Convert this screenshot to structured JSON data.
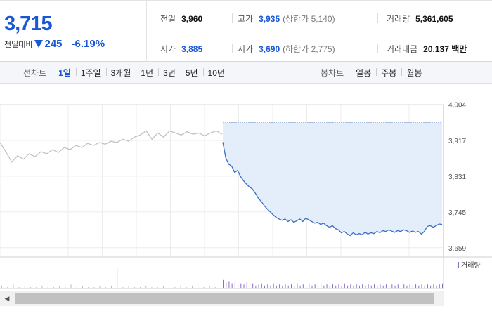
{
  "summary": {
    "current_price": "3,715",
    "change_label": "전일대비",
    "change_value": "245",
    "change_pct": "-6.19%",
    "prev_close": {
      "label": "전일",
      "value": "3,960"
    },
    "open": {
      "label": "시가",
      "value": "3,885"
    },
    "high": {
      "label": "고가",
      "value": "3,935",
      "limit_text": "(상한가 5,140)"
    },
    "low": {
      "label": "저가",
      "value": "3,690",
      "limit_text": "(하한가 2,775)"
    },
    "volume": {
      "label": "거래량",
      "value": "5,361,605"
    },
    "amount": {
      "label": "거래대금",
      "value": "20,137 백만"
    }
  },
  "toolbar": {
    "line_title": "선차트",
    "periods": [
      "1일",
      "1주일",
      "3개월",
      "1년",
      "3년",
      "5년",
      "10년"
    ],
    "active_period": "1일",
    "candle_title": "봉차트",
    "candles": [
      "일봉",
      "주봉",
      "월봉"
    ]
  },
  "chart_data": {
    "type": "line",
    "title": "",
    "xlabel": "",
    "ylabel": "",
    "ylim": [
      3640,
      4015
    ],
    "y_ticks": [
      "4,004",
      "3,917",
      "3,831",
      "3,745",
      "3,659"
    ],
    "y_tick_values": [
      4004,
      3917,
      3831,
      3745,
      3659
    ],
    "volume_legend": "거래량",
    "series": [
      {
        "role": "previous-day",
        "color": "#bdbdbd",
        "values": [
          3912,
          3890,
          3865,
          3880,
          3872,
          3885,
          3878,
          3890,
          3885,
          3895,
          3888,
          3900,
          3895,
          3905,
          3900,
          3910,
          3905,
          3912,
          3908,
          3915,
          3912,
          3920,
          3915,
          3925,
          3930,
          3940,
          3920,
          3935,
          3925,
          3940,
          3935,
          3930,
          3938,
          3932,
          3935,
          3928,
          3935,
          3940,
          3932
        ]
      },
      {
        "role": "today",
        "color": "#3a6fc4",
        "fill": "#e4edfa",
        "open_value": 3960,
        "values": [
          3913,
          3875,
          3860,
          3855,
          3840,
          3845,
          3830,
          3820,
          3812,
          3805,
          3800,
          3790,
          3778,
          3770,
          3760,
          3752,
          3745,
          3738,
          3732,
          3728,
          3725,
          3728,
          3722,
          3726,
          3720,
          3724,
          3728,
          3722,
          3730,
          3726,
          3722,
          3718,
          3720,
          3715,
          3718,
          3712,
          3708,
          3712,
          3705,
          3702,
          3695,
          3698,
          3692,
          3688,
          3695,
          3690,
          3693,
          3690,
          3696,
          3692,
          3695,
          3693,
          3698,
          3695,
          3700,
          3698,
          3702,
          3699,
          3696,
          3700,
          3698,
          3702,
          3700,
          3696,
          3699,
          3696,
          3698,
          3692,
          3698,
          3710,
          3712,
          3708,
          3712,
          3716,
          3715
        ]
      }
    ],
    "volume": {
      "prev_day": [
        2,
        1,
        3,
        1,
        2,
        1,
        1,
        2,
        1,
        1,
        2,
        1,
        3,
        1,
        2,
        1,
        1,
        2,
        1,
        2,
        18,
        1,
        2,
        1,
        1,
        2,
        1,
        1,
        2,
        1,
        1,
        2,
        1,
        2,
        3,
        1,
        2,
        1,
        2
      ],
      "today": [
        7,
        5,
        6,
        4,
        5,
        3,
        4,
        3,
        5,
        3,
        4,
        2,
        3,
        4,
        2,
        3,
        2,
        4,
        2,
        3,
        2,
        3,
        2,
        3,
        2,
        4,
        2,
        3,
        2,
        3,
        2,
        3,
        2,
        4,
        2,
        3,
        2,
        3,
        2,
        3,
        2,
        4,
        2,
        3,
        2,
        3,
        2,
        3,
        2,
        3,
        2,
        3,
        2,
        3,
        2,
        3,
        2,
        3,
        2,
        3,
        2,
        3,
        2,
        3,
        2,
        3,
        2,
        3,
        2,
        3,
        2,
        3,
        2,
        3,
        4
      ]
    }
  }
}
